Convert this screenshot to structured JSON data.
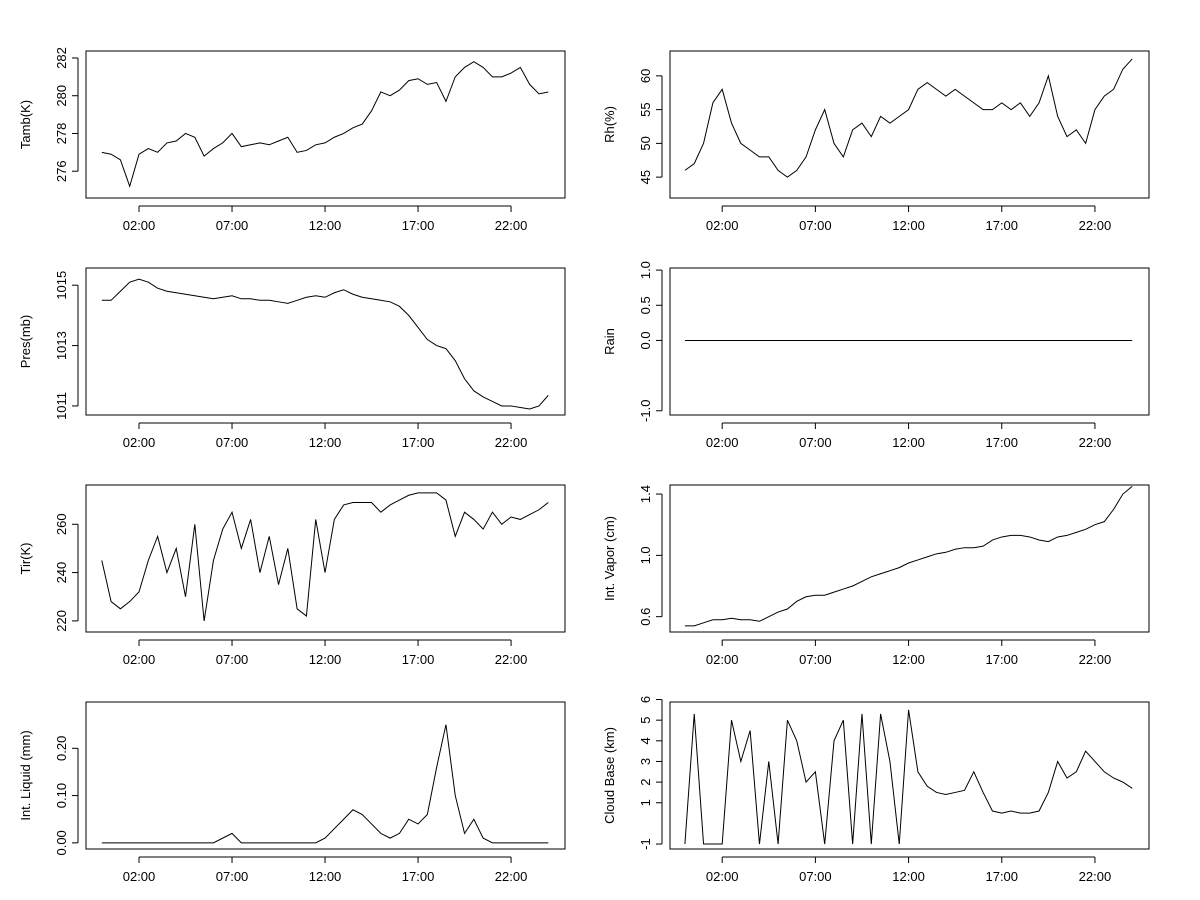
{
  "chart_data": [
    {
      "type": "line",
      "ylabel": "Tamb(K)",
      "color": "#000000",
      "x": [
        0,
        0.5,
        1,
        1.5,
        2,
        2.5,
        3,
        3.5,
        4,
        4.5,
        5,
        5.5,
        6,
        6.5,
        7,
        7.5,
        8,
        8.5,
        9,
        9.5,
        10,
        10.5,
        11,
        11.5,
        12,
        12.5,
        13,
        13.5,
        14,
        14.5,
        15,
        15.5,
        16,
        16.5,
        17,
        17.5,
        18,
        18.5,
        19,
        19.5,
        20,
        20.5,
        21,
        21.5,
        22,
        22.5,
        23,
        23.5,
        24
      ],
      "values": [
        277,
        276.9,
        276.6,
        275.2,
        276.9,
        277.2,
        277,
        277.5,
        277.6,
        278,
        277.8,
        276.8,
        277.2,
        277.5,
        278,
        277.3,
        277.4,
        277.5,
        277.4,
        277.6,
        277.8,
        277,
        277.1,
        277.4,
        277.5,
        277.8,
        278,
        278.3,
        278.5,
        279.2,
        280.2,
        280,
        280.3,
        280.8,
        280.9,
        280.6,
        280.7,
        279.7,
        281,
        281.5,
        281.8,
        281.5,
        281,
        281,
        281.2,
        281.5,
        280.6,
        280.1,
        280.2
      ],
      "xlim": [
        -0.85,
        24.9
      ],
      "xticks": [
        {
          "value": 2,
          "label": "02:00"
        },
        {
          "value": 7,
          "label": "07:00"
        },
        {
          "value": 12,
          "label": "12:00"
        },
        {
          "value": 17,
          "label": "17:00"
        },
        {
          "value": 22,
          "label": "22:00"
        }
      ],
      "ylim": [
        274.58,
        282.37
      ],
      "yticks": [
        276,
        278,
        280,
        282
      ]
    },
    {
      "type": "line",
      "ylabel": "Rh(%)",
      "color": "#000000",
      "x": [
        0,
        0.5,
        1,
        1.5,
        2,
        2.5,
        3,
        3.5,
        4,
        4.5,
        5,
        5.5,
        6,
        6.5,
        7,
        7.5,
        8,
        8.5,
        9,
        9.5,
        10,
        10.5,
        11,
        11.5,
        12,
        12.5,
        13,
        13.5,
        14,
        14.5,
        15,
        15.5,
        16,
        16.5,
        17,
        17.5,
        18,
        18.5,
        19,
        19.5,
        20,
        20.5,
        21,
        21.5,
        22,
        22.5,
        23,
        23.5,
        24
      ],
      "values": [
        46,
        47,
        50,
        56,
        58,
        53,
        50,
        49,
        48,
        48,
        46,
        45,
        46,
        48,
        52,
        55,
        50,
        48,
        52,
        53,
        51,
        54,
        53,
        54,
        55,
        58,
        59,
        58,
        57,
        58,
        57,
        56,
        55,
        55,
        56,
        55,
        56,
        54,
        56,
        60,
        54,
        51,
        52,
        50,
        55,
        57,
        58,
        61,
        62.5
      ],
      "xlim": [
        -0.8,
        24.9
      ],
      "xticks": [
        {
          "value": 2,
          "label": "02:00"
        },
        {
          "value": 7,
          "label": "07:00"
        },
        {
          "value": 12,
          "label": "12:00"
        },
        {
          "value": 17,
          "label": "17:00"
        },
        {
          "value": 22,
          "label": "22:00"
        }
      ],
      "ylim": [
        41.91,
        63.68
      ],
      "yticks": [
        45,
        50,
        55,
        60
      ]
    },
    {
      "type": "line",
      "ylabel": "Pres(mb)",
      "color": "#000000",
      "x": [
        0,
        0.5,
        1,
        1.5,
        2,
        2.5,
        3,
        3.5,
        4,
        4.5,
        5,
        5.5,
        6,
        6.5,
        7,
        7.5,
        8,
        8.5,
        9,
        9.5,
        10,
        10.5,
        11,
        11.5,
        12,
        12.5,
        13,
        13.5,
        14,
        14.5,
        15,
        15.5,
        16,
        16.5,
        17,
        17.5,
        18,
        18.5,
        19,
        19.5,
        20,
        20.5,
        21,
        21.5,
        22,
        22.5,
        23,
        23.5,
        24
      ],
      "values": [
        1014.5,
        1014.5,
        1014.8,
        1015.1,
        1015.2,
        1015.1,
        1014.9,
        1014.8,
        1014.75,
        1014.7,
        1014.65,
        1014.6,
        1014.55,
        1014.6,
        1014.65,
        1014.55,
        1014.55,
        1014.5,
        1014.5,
        1014.45,
        1014.4,
        1014.5,
        1014.6,
        1014.65,
        1014.6,
        1014.75,
        1014.85,
        1014.7,
        1014.6,
        1014.55,
        1014.5,
        1014.45,
        1014.3,
        1014,
        1013.6,
        1013.2,
        1013,
        1012.9,
        1012.5,
        1011.9,
        1011.5,
        1011.3,
        1011.15,
        1011,
        1011,
        1010.95,
        1010.9,
        1011,
        1011.35
      ],
      "xlim": [
        -0.85,
        24.9
      ],
      "xticks": [
        {
          "value": 2,
          "label": "02:00"
        },
        {
          "value": 7,
          "label": "07:00"
        },
        {
          "value": 12,
          "label": "12:00"
        },
        {
          "value": 17,
          "label": "17:00"
        },
        {
          "value": 22,
          "label": "22:00"
        }
      ],
      "ylim": [
        1010.7,
        1015.57
      ],
      "yticks": [
        1011,
        1013,
        1015
      ]
    },
    {
      "type": "line",
      "ylabel": "Rain",
      "color": "#000000",
      "x": [
        0,
        0.5,
        1,
        1.5,
        2,
        2.5,
        3,
        3.5,
        4,
        4.5,
        5,
        5.5,
        6,
        6.5,
        7,
        7.5,
        8,
        8.5,
        9,
        9.5,
        10,
        10.5,
        11,
        11.5,
        12,
        12.5,
        13,
        13.5,
        14,
        14.5,
        15,
        15.5,
        16,
        16.5,
        17,
        17.5,
        18,
        18.5,
        19,
        19.5,
        20,
        20.5,
        21,
        21.5,
        22,
        22.5,
        23,
        23.5,
        24
      ],
      "values": [
        0,
        0,
        0,
        0,
        0,
        0,
        0,
        0,
        0,
        0,
        0,
        0,
        0,
        0,
        0,
        0,
        0,
        0,
        0,
        0,
        0,
        0,
        0,
        0,
        0,
        0,
        0,
        0,
        0,
        0,
        0,
        0,
        0,
        0,
        0,
        0,
        0,
        0,
        0,
        0,
        0,
        0,
        0,
        0,
        0,
        0,
        0,
        0,
        0
      ],
      "xlim": [
        -0.8,
        24.9
      ],
      "xticks": [
        {
          "value": 2,
          "label": "02:00"
        },
        {
          "value": 7,
          "label": "07:00"
        },
        {
          "value": 12,
          "label": "12:00"
        },
        {
          "value": 17,
          "label": "17:00"
        },
        {
          "value": 22,
          "label": "22:00"
        }
      ],
      "ylim": [
        -1.06,
        1.03
      ],
      "yticks": [
        {
          "value": -1,
          "label": "-1.0"
        },
        {
          "value": 0,
          "label": "0.0"
        },
        0.5,
        {
          "value": 1,
          "label": "1.0"
        }
      ]
    },
    {
      "type": "line",
      "ylabel": "Tir(K)",
      "color": "#000000",
      "x": [
        0,
        0.5,
        1,
        1.5,
        2,
        2.5,
        3,
        3.5,
        4,
        4.5,
        5,
        5.5,
        6,
        6.5,
        7,
        7.5,
        8,
        8.5,
        9,
        9.5,
        10,
        10.5,
        11,
        11.5,
        12,
        12.5,
        13,
        13.5,
        14,
        14.5,
        15,
        15.5,
        16,
        16.5,
        17,
        17.5,
        18,
        18.5,
        19,
        19.5,
        20,
        20.5,
        21,
        21.5,
        22,
        22.5,
        23,
        23.5,
        24
      ],
      "values": [
        245,
        228,
        225,
        228,
        232,
        245,
        255,
        240,
        250,
        230,
        260,
        220,
        245,
        258,
        265,
        250,
        262,
        240,
        255,
        235,
        250,
        225,
        222,
        262,
        240,
        262,
        268,
        269,
        269,
        269,
        265,
        268,
        270,
        272,
        273,
        273,
        273,
        270,
        255,
        265,
        262,
        258,
        265,
        260,
        263,
        262,
        264,
        266,
        269
      ],
      "xlim": [
        -0.85,
        24.9
      ],
      "xticks": [
        {
          "value": 2,
          "label": "02:00"
        },
        {
          "value": 7,
          "label": "07:00"
        },
        {
          "value": 12,
          "label": "12:00"
        },
        {
          "value": 17,
          "label": "17:00"
        },
        {
          "value": 22,
          "label": "22:00"
        }
      ],
      "ylim": [
        215.4,
        276.25
      ],
      "yticks": [
        220,
        240,
        260
      ]
    },
    {
      "type": "line",
      "ylabel": "Int. Vapor (cm)",
      "color": "#000000",
      "x": [
        0,
        0.5,
        1,
        1.5,
        2,
        2.5,
        3,
        3.5,
        4,
        4.5,
        5,
        5.5,
        6,
        6.5,
        7,
        7.5,
        8,
        8.5,
        9,
        9.5,
        10,
        10.5,
        11,
        11.5,
        12,
        12.5,
        13,
        13.5,
        14,
        14.5,
        15,
        15.5,
        16,
        16.5,
        17,
        17.5,
        18,
        18.5,
        19,
        19.5,
        20,
        20.5,
        21,
        21.5,
        22,
        22.5,
        23,
        23.5,
        24
      ],
      "values": [
        0.54,
        0.54,
        0.56,
        0.58,
        0.58,
        0.59,
        0.58,
        0.58,
        0.57,
        0.6,
        0.63,
        0.65,
        0.7,
        0.73,
        0.74,
        0.74,
        0.76,
        0.78,
        0.8,
        0.83,
        0.86,
        0.88,
        0.9,
        0.92,
        0.95,
        0.97,
        0.99,
        1.01,
        1.02,
        1.04,
        1.05,
        1.05,
        1.06,
        1.1,
        1.12,
        1.13,
        1.13,
        1.12,
        1.1,
        1.09,
        1.12,
        1.13,
        1.15,
        1.17,
        1.2,
        1.22,
        1.3,
        1.4,
        1.45
      ],
      "xlim": [
        -0.8,
        24.9
      ],
      "xticks": [
        {
          "value": 2,
          "label": "02:00"
        },
        {
          "value": 7,
          "label": "07:00"
        },
        {
          "value": 12,
          "label": "12:00"
        },
        {
          "value": 17,
          "label": "17:00"
        },
        {
          "value": 22,
          "label": "22:00"
        }
      ],
      "ylim": [
        0.5,
        1.459
      ],
      "yticks": [
        0.6,
        {
          "value": 1,
          "label": "1.0"
        },
        1.4
      ]
    },
    {
      "type": "line",
      "ylabel": "Int. Liquid (mm)",
      "color": "#000000",
      "x": [
        0,
        0.5,
        1,
        1.5,
        2,
        2.5,
        3,
        3.5,
        4,
        4.5,
        5,
        5.5,
        6,
        6.5,
        7,
        7.5,
        8,
        8.5,
        9,
        9.5,
        10,
        10.5,
        11,
        11.5,
        12,
        12.5,
        13,
        13.5,
        14,
        14.5,
        15,
        15.5,
        16,
        16.5,
        17,
        17.5,
        18,
        18.5,
        19,
        19.5,
        20,
        20.5,
        21,
        21.5,
        22,
        22.5,
        23,
        23.5,
        24
      ],
      "values": [
        0,
        0,
        0,
        0,
        0,
        0,
        0,
        0,
        0,
        0,
        0,
        0,
        0,
        0.01,
        0.02,
        0,
        0,
        0,
        0,
        0,
        0,
        0,
        0,
        0,
        0.01,
        0.03,
        0.05,
        0.07,
        0.06,
        0.04,
        0.02,
        0.01,
        0.02,
        0.05,
        0.04,
        0.06,
        0.16,
        0.25,
        0.1,
        0.02,
        0.05,
        0.01,
        0,
        0,
        0,
        0,
        0,
        0,
        0
      ],
      "xlim": [
        -0.85,
        24.9
      ],
      "xticks": [
        {
          "value": 2,
          "label": "02:00"
        },
        {
          "value": 7,
          "label": "07:00"
        },
        {
          "value": 12,
          "label": "12:00"
        },
        {
          "value": 17,
          "label": "17:00"
        },
        {
          "value": 22,
          "label": "22:00"
        }
      ],
      "ylim": [
        -0.013,
        0.298
      ],
      "yticks": [
        {
          "value": 0,
          "label": "0.00"
        },
        {
          "value": 0.1,
          "label": "0.10"
        },
        {
          "value": 0.2,
          "label": "0.20"
        }
      ]
    },
    {
      "type": "line",
      "ylabel": "Cloud Base (km)",
      "color": "#000000",
      "x": [
        0,
        0.5,
        1,
        1.5,
        2,
        2.5,
        3,
        3.5,
        4,
        4.5,
        5,
        5.5,
        6,
        6.5,
        7,
        7.5,
        8,
        8.5,
        9,
        9.5,
        10,
        10.5,
        11,
        11.5,
        12,
        12.5,
        13,
        13.5,
        14,
        14.5,
        15,
        15.5,
        16,
        16.5,
        17,
        17.5,
        18,
        18.5,
        19,
        19.5,
        20,
        20.5,
        21,
        21.5,
        22,
        22.5,
        23,
        23.5,
        24
      ],
      "values": [
        -1,
        5.3,
        -1,
        -1,
        -1,
        5,
        3,
        4.5,
        -1,
        3,
        -1,
        5,
        4,
        2,
        2.5,
        -1,
        4,
        5,
        -1,
        5.3,
        -1,
        5.3,
        3,
        -1,
        5.5,
        2.5,
        1.8,
        1.5,
        1.4,
        1.5,
        1.6,
        2.5,
        1.5,
        0.6,
        0.5,
        0.6,
        0.5,
        0.5,
        0.6,
        1.5,
        3,
        2.2,
        2.5,
        3.5,
        3,
        2.5,
        2.2,
        2,
        1.7
      ],
      "xlim": [
        -0.8,
        24.9
      ],
      "xticks": [
        {
          "value": 2,
          "label": "02:00"
        },
        {
          "value": 7,
          "label": "07:00"
        },
        {
          "value": 12,
          "label": "12:00"
        },
        {
          "value": 17,
          "label": "17:00"
        },
        {
          "value": 22,
          "label": "22:00"
        }
      ],
      "ylim": [
        -1.24,
        5.88
      ],
      "yticks": [
        -1,
        1,
        2,
        3,
        4,
        5,
        6
      ]
    }
  ]
}
